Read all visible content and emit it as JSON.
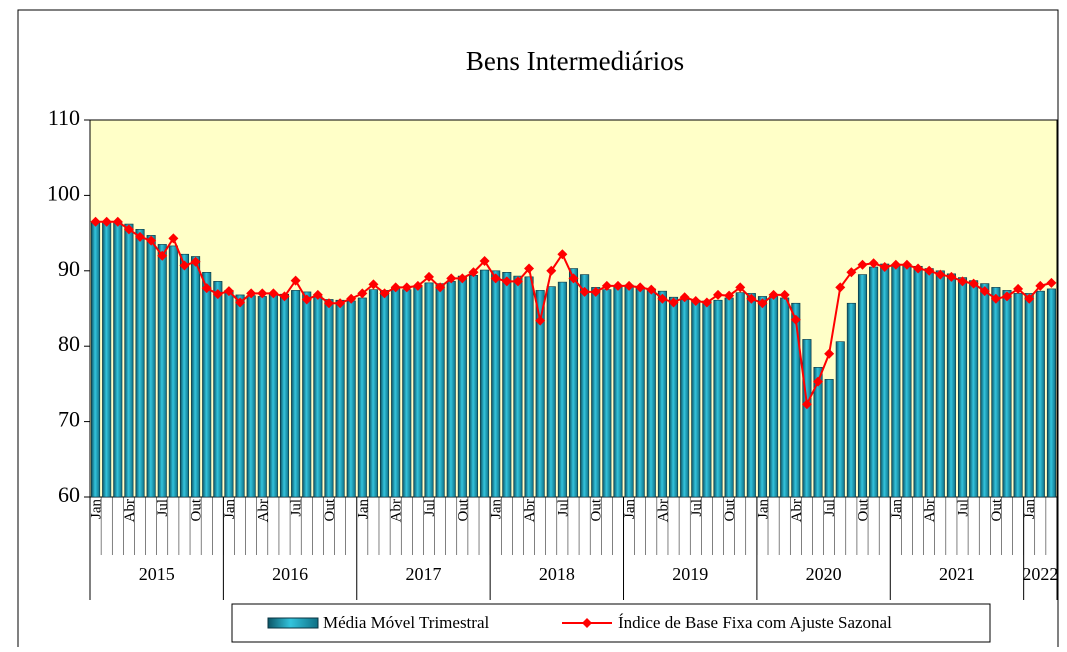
{
  "chart_data": {
    "type": "bar-line",
    "title": "Bens Intermediários",
    "categories": [
      "Jan",
      null,
      null,
      "Abr",
      null,
      null,
      "Jul",
      null,
      null,
      "Out",
      null,
      null,
      "Jan",
      null,
      null,
      "Abr",
      null,
      null,
      "Jul",
      null,
      null,
      "Out",
      null,
      null,
      "Jan",
      null,
      null,
      "Abr",
      null,
      null,
      "Jul",
      null,
      null,
      "Out",
      null,
      null,
      "Jan",
      null,
      null,
      "Abr",
      null,
      null,
      "Jul",
      null,
      null,
      "Out",
      null,
      null,
      "Jan",
      null,
      null,
      "Abr",
      null,
      null,
      "Jul",
      null,
      null,
      "Out",
      null,
      null,
      "Jan",
      null,
      null,
      "Abr",
      null,
      null,
      "Jul",
      null,
      null,
      "Out",
      null,
      null,
      "Jan",
      null,
      null,
      "Abr",
      null,
      null,
      "Jul",
      null,
      null,
      "Out",
      null,
      null,
      "Jan",
      null,
      null
    ],
    "years": [
      "2015",
      "2016",
      "2017",
      "2018",
      "2019",
      "2020",
      "2021",
      "2022"
    ],
    "series": [
      {
        "name": "Média Móvel Trimestral",
        "color": "#2aa6c0",
        "values": [
          96.5,
          96.5,
          96.5,
          96.2,
          95.5,
          94.7,
          93.5,
          93.3,
          92.2,
          91.9,
          89.8,
          88.6,
          87.4,
          86.8,
          86.7,
          86.6,
          87,
          86.9,
          87.4,
          87.2,
          86.6,
          86.2,
          86.1,
          86,
          86.4,
          87.5,
          87.4,
          87.7,
          87.5,
          87.9,
          88.4,
          88.3,
          88.6,
          89.3,
          89.4,
          90.1,
          90,
          89.8,
          89.3,
          89.2,
          87.4,
          87.9,
          88.5,
          90.3,
          89.5,
          87.8,
          87.5,
          88,
          88.1,
          87.8,
          87.6,
          87.3,
          86.5,
          86.2,
          86.1,
          86,
          86.1,
          86.4,
          87.1,
          87,
          86.6,
          86.6,
          86.4,
          85.7,
          80.9,
          77.2,
          75.6,
          80.6,
          85.7,
          89.5,
          90.5,
          90.9,
          90.7,
          90.8,
          90.6,
          90.3,
          90,
          89.6,
          89.1,
          88.7,
          88.3,
          87.8,
          87.4,
          87,
          87,
          87.3,
          87.6
        ]
      },
      {
        "name": "Índice de Base Fixa com Ajuste Sazonal",
        "color": "#ff0000",
        "values": [
          96.5,
          96.5,
          96.5,
          95.5,
          94.5,
          94,
          92,
          94.3,
          90.7,
          91.2,
          87.7,
          86.9,
          87.3,
          85.8,
          87,
          87,
          87,
          86.6,
          88.7,
          86.2,
          86.8,
          85.7,
          85.7,
          86.3,
          87,
          88.2,
          87,
          87.8,
          87.8,
          88,
          89.2,
          87.8,
          89,
          89,
          89.8,
          91.3,
          89,
          88.6,
          88.6,
          90.3,
          83.4,
          90,
          92.2,
          89,
          87.2,
          87.2,
          88,
          88,
          88,
          87.8,
          87.5,
          86.3,
          85.8,
          86.5,
          86,
          85.8,
          86.8,
          86.7,
          87.8,
          86.3,
          85.7,
          86.8,
          86.8,
          83.5,
          72.3,
          75.3,
          79,
          87.8,
          89.8,
          90.8,
          91,
          90.5,
          90.8,
          90.8,
          90.3,
          90,
          89.5,
          89.2,
          88.6,
          88.3,
          87.3,
          86.3,
          86.6,
          87.6,
          86.3,
          88,
          88.4
        ]
      }
    ],
    "ylim": [
      60,
      110
    ],
    "yticks": [
      60,
      70,
      80,
      90,
      100,
      110
    ],
    "plot_background": "#ffffc8"
  }
}
